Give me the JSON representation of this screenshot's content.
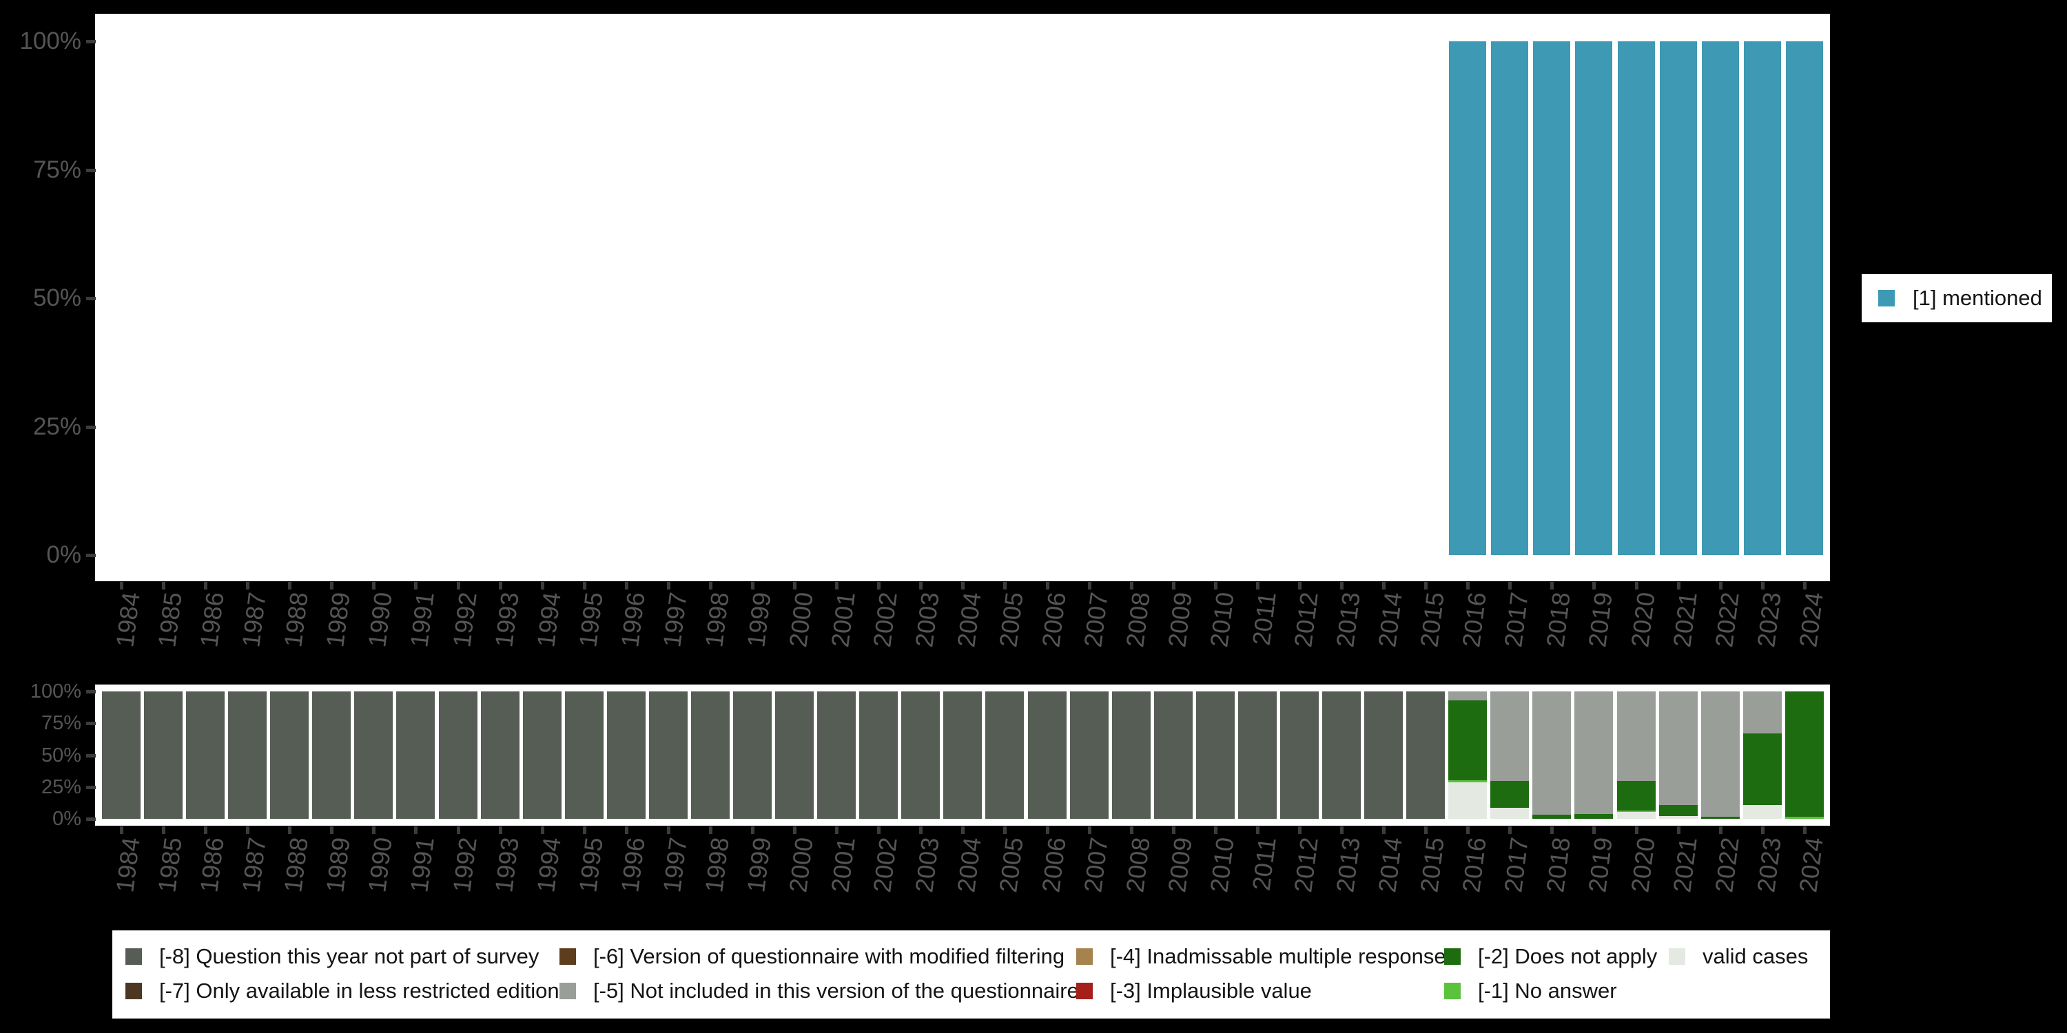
{
  "colors": {
    "background": "#000000",
    "plot_background": "#ffffff",
    "tick": "#3c3c3c",
    "axis_label": "#555555",
    "legend_text": "#141414",
    "mentioned": "#3D99B4",
    "minus8": "#565D55",
    "minus7": "#4C3822",
    "minus6": "#5E3C1E",
    "minus5": "#9A9E99",
    "minus4": "#A5824E",
    "minus3": "#A42019",
    "minus2": "#1E6C10",
    "minus1": "#5BC23E",
    "valid": "#E4E9E2"
  },
  "chart_data": [
    {
      "type": "bar",
      "title": "",
      "xlabel": "",
      "ylabel": "",
      "ylim": [
        0,
        100
      ],
      "grid": false,
      "legend_position": "right",
      "ylabel_ticks": [
        "100%",
        "75%",
        "50%",
        "25%",
        "0%"
      ],
      "x": [
        "1984",
        "1985",
        "1986",
        "1987",
        "1988",
        "1989",
        "1990",
        "1991",
        "1992",
        "1993",
        "1994",
        "1995",
        "1996",
        "1997",
        "1998",
        "1999",
        "2000",
        "2001",
        "2002",
        "2003",
        "2004",
        "2005",
        "2006",
        "2007",
        "2008",
        "2009",
        "2010",
        "2011",
        "2012",
        "2013",
        "2014",
        "2015",
        "2016",
        "2017",
        "2018",
        "2019",
        "2020",
        "2021",
        "2022",
        "2023",
        "2024"
      ],
      "series": [
        {
          "name": "[1] mentioned",
          "color": "#3D99B4",
          "values": [
            0,
            0,
            0,
            0,
            0,
            0,
            0,
            0,
            0,
            0,
            0,
            0,
            0,
            0,
            0,
            0,
            0,
            0,
            0,
            0,
            0,
            0,
            0,
            0,
            0,
            0,
            0,
            0,
            0,
            0,
            0,
            0,
            100,
            100,
            100,
            100,
            100,
            100,
            100,
            100,
            100
          ]
        }
      ]
    },
    {
      "type": "bar-stacked",
      "title": "",
      "xlabel": "",
      "ylabel": "",
      "ylim": [
        0,
        100
      ],
      "grid": false,
      "legend_position": "bottom",
      "ylabel_ticks": [
        "100%",
        "75%",
        "50%",
        "25%",
        "0%"
      ],
      "x": [
        "1984",
        "1985",
        "1986",
        "1987",
        "1988",
        "1989",
        "1990",
        "1991",
        "1992",
        "1993",
        "1994",
        "1995",
        "1996",
        "1997",
        "1998",
        "1999",
        "2000",
        "2001",
        "2002",
        "2003",
        "2004",
        "2005",
        "2006",
        "2007",
        "2008",
        "2009",
        "2010",
        "2011",
        "2012",
        "2013",
        "2014",
        "2015",
        "2016",
        "2017",
        "2018",
        "2019",
        "2020",
        "2021",
        "2022",
        "2023",
        "2024"
      ],
      "series": [
        {
          "name": "valid cases",
          "color": "#E4E9E2",
          "values": [
            0,
            0,
            0,
            0,
            0,
            0,
            0,
            0,
            0,
            0,
            0,
            0,
            0,
            0,
            0,
            0,
            0,
            0,
            0,
            0,
            0,
            0,
            0,
            0,
            0,
            0,
            0,
            0,
            0,
            0,
            0,
            0,
            28.5,
            8.5,
            0,
            0,
            5.5,
            2,
            0,
            11,
            0
          ]
        },
        {
          "name": "[-1] No answer",
          "color": "#5BC23E",
          "values": [
            0,
            0,
            0,
            0,
            0,
            0,
            0,
            0,
            0,
            0,
            0,
            0,
            0,
            0,
            0,
            0,
            0,
            0,
            0,
            0,
            0,
            0,
            0,
            0,
            0,
            0,
            0,
            0,
            0,
            0,
            0,
            0,
            2,
            0,
            0,
            0,
            1,
            0,
            0,
            0,
            1.5
          ]
        },
        {
          "name": "[-2] Does not apply",
          "color": "#1E6C10",
          "values": [
            0,
            0,
            0,
            0,
            0,
            0,
            0,
            0,
            0,
            0,
            0,
            0,
            0,
            0,
            0,
            0,
            0,
            0,
            0,
            0,
            0,
            0,
            0,
            0,
            0,
            0,
            0,
            0,
            0,
            0,
            0,
            0,
            62.5,
            21.5,
            3.2,
            4,
            23.5,
            9,
            1.5,
            56,
            98.5
          ]
        },
        {
          "name": "[-5] Not included in this version of the questionnaire",
          "color": "#9A9E99",
          "values": [
            0,
            0,
            0,
            0,
            0,
            0,
            0,
            0,
            0,
            0,
            0,
            0,
            0,
            0,
            0,
            0,
            0,
            0,
            0,
            0,
            0,
            0,
            0,
            0,
            0,
            0,
            0,
            0,
            0,
            0,
            0,
            0,
            7,
            70,
            96.8,
            96,
            70,
            89,
            98.5,
            33,
            0
          ]
        },
        {
          "name": "[-8] Question this year not part of survey",
          "color": "#565D55",
          "values": [
            100,
            100,
            100,
            100,
            100,
            100,
            100,
            100,
            100,
            100,
            100,
            100,
            100,
            100,
            100,
            100,
            100,
            100,
            100,
            100,
            100,
            100,
            100,
            100,
            100,
            100,
            100,
            100,
            100,
            100,
            100,
            100,
            0,
            0,
            0,
            0,
            0,
            0,
            0,
            0,
            0
          ]
        }
      ]
    }
  ],
  "legend_bottom": {
    "items": [
      {
        "label": "[-8] Question this year not part of survey",
        "color": "#565D55",
        "col": 0,
        "row": 0
      },
      {
        "label": "[-7] Only available in less restricted edition",
        "color": "#4C3822",
        "col": 0,
        "row": 1
      },
      {
        "label": "[-6] Version of questionnaire with modified filtering",
        "color": "#5E3C1E",
        "col": 1,
        "row": 0
      },
      {
        "label": "[-5] Not included in this version of the questionnaire",
        "color": "#9A9E99",
        "col": 1,
        "row": 1
      },
      {
        "label": "[-4] Inadmissable multiple response",
        "color": "#A5824E",
        "col": 2,
        "row": 0
      },
      {
        "label": "[-3] Implausible value",
        "color": "#A42019",
        "col": 2,
        "row": 1
      },
      {
        "label": "[-2] Does not apply",
        "color": "#1E6C10",
        "col": 3,
        "row": 0
      },
      {
        "label": "[-1] No answer",
        "color": "#5BC23E",
        "col": 3,
        "row": 1
      },
      {
        "label": "valid cases",
        "color": "#E4E9E2",
        "col": 4,
        "row": 0
      }
    ]
  }
}
